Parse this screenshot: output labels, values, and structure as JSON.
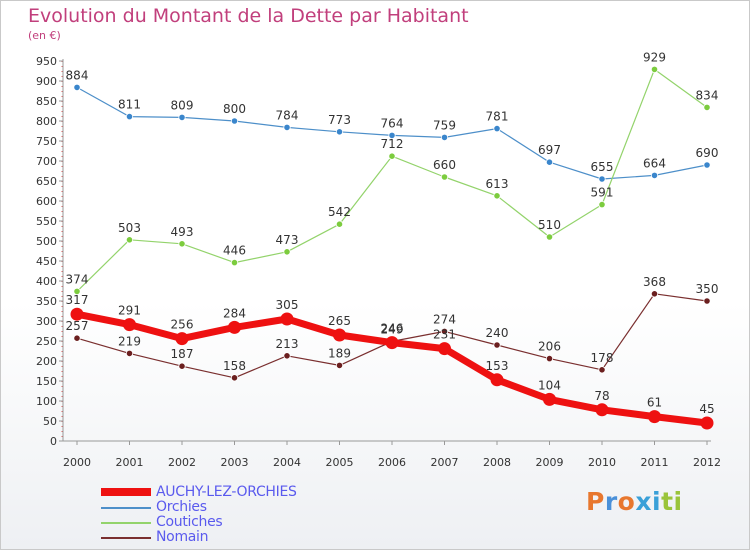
{
  "title": "Evolution du Montant de la Dette par Habitant",
  "subtitle": "(en €)",
  "logo": {
    "text": "Proxiti",
    "letter_colors": [
      "#e8772e",
      "#4a90d9",
      "#e8772e",
      "#3aa0d8",
      "#3aa0d8",
      "#9ac43a",
      "#9ac43a"
    ]
  },
  "chart_data": {
    "type": "line",
    "title": "Evolution du Montant de la Dette par Habitant",
    "ylabel": "(en €)",
    "xlabel": "",
    "x": [
      "2000",
      "2001",
      "2002",
      "2003",
      "2004",
      "2005",
      "2006",
      "2007",
      "2008",
      "2009",
      "2010",
      "2011",
      "2012"
    ],
    "ylim": [
      0,
      950
    ],
    "yticks": [
      0,
      50,
      100,
      150,
      200,
      250,
      300,
      350,
      400,
      450,
      500,
      550,
      600,
      650,
      700,
      750,
      800,
      850,
      900,
      950
    ],
    "grid": false,
    "legend_position": "bottom-left",
    "series": [
      {
        "name": "AUCHY-LEZ-ORCHIES",
        "color": "#ee1111",
        "marker_color": "#ee1111",
        "values": [
          317,
          291,
          256,
          284,
          305,
          265,
          246,
          231,
          153,
          104,
          78,
          61,
          45
        ]
      },
      {
        "name": "Orchies",
        "color": "#4d8fc9",
        "marker_color": "#3a86cc",
        "values": [
          884,
          811,
          809,
          800,
          784,
          773,
          764,
          759,
          781,
          697,
          655,
          664,
          690
        ]
      },
      {
        "name": "Coutiches",
        "color": "#93d36b",
        "marker_color": "#7ccc3e",
        "values": [
          374,
          503,
          493,
          446,
          473,
          542,
          712,
          660,
          613,
          510,
          591,
          929,
          834
        ]
      },
      {
        "name": "Nomain",
        "color": "#7a2f2f",
        "marker_color": "#6b1f1f",
        "values": [
          257,
          219,
          187,
          158,
          213,
          189,
          249,
          274,
          240,
          206,
          178,
          368,
          350
        ]
      }
    ]
  }
}
